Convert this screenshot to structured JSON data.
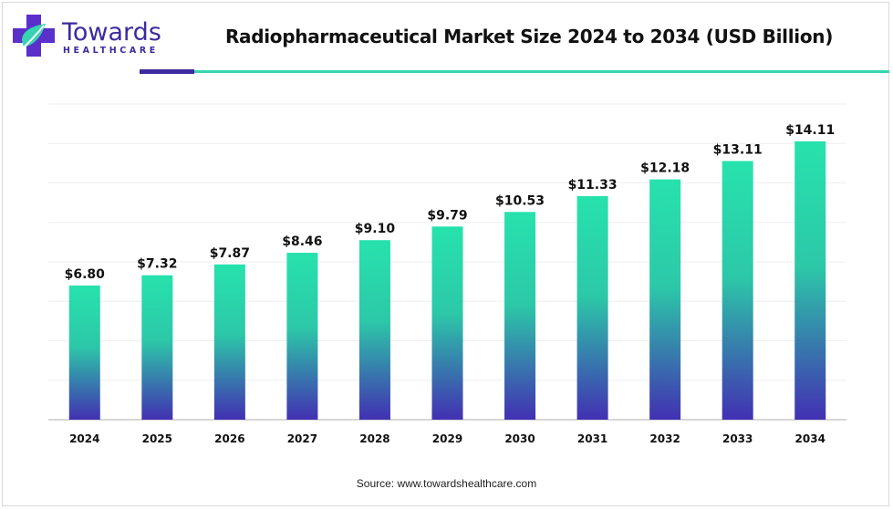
{
  "brand": {
    "name": "Towards",
    "subname": "HEALTHCARE",
    "colors": {
      "primary": "#3c2aa1",
      "accent": "#36d4b0"
    }
  },
  "header": {
    "title": "Radiopharmaceutical Market Size 2024 to 2034 (USD Billion)"
  },
  "footer": {
    "source": "Source: www.towardshealthcare.com"
  },
  "chart_data": {
    "type": "bar",
    "title": "Radiopharmaceutical Market Size 2024 to 2034 (USD Billion)",
    "xlabel": "",
    "ylabel": "",
    "categories": [
      "2024",
      "2025",
      "2026",
      "2027",
      "2028",
      "2029",
      "2030",
      "2031",
      "2032",
      "2033",
      "2034"
    ],
    "values": [
      6.8,
      7.32,
      7.87,
      8.46,
      9.1,
      9.79,
      10.53,
      11.33,
      12.18,
      13.11,
      14.11
    ],
    "value_labels": [
      "$6.80",
      "$7.32",
      "$7.87",
      "$8.46",
      "$9.10",
      "$9.79",
      "$10.53",
      "$11.33",
      "$12.18",
      "$13.11",
      "$14.11"
    ],
    "ylim": [
      0,
      16
    ],
    "grid": true,
    "legend": "none",
    "bar_gradient": {
      "top": "#27e2ad",
      "bottom": "#4230b2"
    }
  }
}
